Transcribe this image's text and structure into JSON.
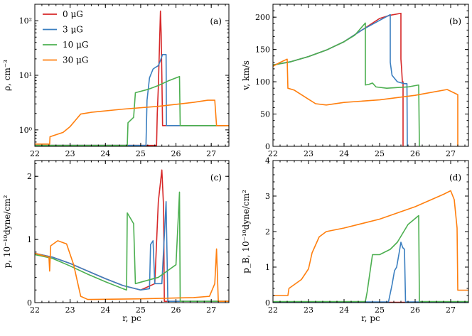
{
  "figure": {
    "legend": {
      "placement": "top-left of panel (a)",
      "entries": [
        {
          "label": "0 μG",
          "color": "#d62728"
        },
        {
          "label": "3 μG",
          "color": "#3b7fc0"
        },
        {
          "label": "10 μG",
          "color": "#4caf50"
        },
        {
          "label": "30 μG",
          "color": "#ff7f0e"
        }
      ]
    }
  },
  "chart_data": [
    {
      "id": "a",
      "type": "line",
      "panel_label": "(a)",
      "xlabel": "",
      "ylabel": "ρ, cm⁻³",
      "yscale": "log",
      "xlim": [
        22,
        27.5
      ],
      "ylim": [
        0.5,
        200
      ],
      "xticks": [
        22,
        23,
        24,
        25,
        26,
        27
      ],
      "xtick_labels": [
        "22",
        "23",
        "24",
        "25",
        "26",
        "27"
      ],
      "yticks": [
        1,
        10,
        100
      ],
      "ytick_labels": [
        "10⁰",
        "10¹",
        "10²"
      ],
      "series": [
        {
          "name": "0 μG",
          "color": "#d62728",
          "points": [
            [
              22,
              0.52
            ],
            [
              25.45,
              0.52
            ],
            [
              25.47,
              2.0
            ],
            [
              25.5,
              6.0
            ],
            [
              25.53,
              30
            ],
            [
              25.56,
              150
            ],
            [
              25.58,
              60
            ],
            [
              25.6,
              10
            ],
            [
              25.62,
              1.2
            ],
            [
              27.5,
              1.2
            ]
          ]
        },
        {
          "name": "3 μG",
          "color": "#3b7fc0",
          "points": [
            [
              22,
              0.52
            ],
            [
              25.15,
              0.52
            ],
            [
              25.18,
              3.5
            ],
            [
              25.25,
              9
            ],
            [
              25.35,
              13
            ],
            [
              25.42,
              14
            ],
            [
              25.5,
              15
            ],
            [
              25.55,
              18
            ],
            [
              25.62,
              24
            ],
            [
              25.72,
              24
            ],
            [
              25.73,
              1.2
            ],
            [
              27.5,
              1.2
            ]
          ]
        },
        {
          "name": "10 μG",
          "color": "#4caf50",
          "points": [
            [
              22,
              0.52
            ],
            [
              24.62,
              0.52
            ],
            [
              24.64,
              1.35
            ],
            [
              24.8,
              1.7
            ],
            [
              24.85,
              4.8
            ],
            [
              25.2,
              5.5
            ],
            [
              25.5,
              6.5
            ],
            [
              25.8,
              8
            ],
            [
              26.1,
              9.5
            ],
            [
              26.12,
              1.2
            ],
            [
              27.5,
              1.2
            ]
          ]
        },
        {
          "name": "30 μG",
          "color": "#ff7f0e",
          "points": [
            [
              22,
              0.55
            ],
            [
              22.42,
              0.55
            ],
            [
              22.43,
              0.75
            ],
            [
              22.8,
              0.9
            ],
            [
              23.0,
              1.15
            ],
            [
              23.15,
              1.5
            ],
            [
              23.3,
              1.95
            ],
            [
              23.6,
              2.1
            ],
            [
              24.5,
              2.4
            ],
            [
              25.5,
              2.7
            ],
            [
              26.5,
              3.2
            ],
            [
              26.9,
              3.5
            ],
            [
              27.1,
              3.5
            ],
            [
              27.15,
              1.2
            ],
            [
              27.5,
              1.2
            ]
          ]
        }
      ]
    },
    {
      "id": "b",
      "type": "line",
      "panel_label": "(b)",
      "xlabel": "",
      "ylabel": "v, km/s",
      "yscale": "linear",
      "xlim": [
        22,
        27.5
      ],
      "ylim": [
        0,
        220
      ],
      "xticks": [
        22,
        23,
        24,
        25,
        26,
        27
      ],
      "xtick_labels": [
        "22",
        "23",
        "24",
        "25",
        "26",
        "27"
      ],
      "yticks": [
        0,
        50,
        100,
        150,
        200
      ],
      "ytick_labels": [
        "0",
        "50",
        "100",
        "150",
        "200"
      ],
      "series": [
        {
          "name": "0 μG",
          "color": "#d62728",
          "points": [
            [
              22,
              126
            ],
            [
              22.5,
              131
            ],
            [
              23,
              139
            ],
            [
              23.5,
              149
            ],
            [
              24,
              162
            ],
            [
              24.5,
              180
            ],
            [
              25,
              198
            ],
            [
              25.3,
              203
            ],
            [
              25.6,
              206
            ],
            [
              25.6,
              135
            ],
            [
              25.62,
              120
            ],
            [
              25.64,
              100
            ],
            [
              25.66,
              100
            ],
            [
              25.66,
              0
            ]
          ]
        },
        {
          "name": "3 μG",
          "color": "#3b7fc0",
          "points": [
            [
              22,
              126
            ],
            [
              22.5,
              131
            ],
            [
              23,
              139
            ],
            [
              23.5,
              149
            ],
            [
              24,
              162
            ],
            [
              24.5,
              180
            ],
            [
              25,
              195
            ],
            [
              25.3,
              204
            ],
            [
              25.3,
              130
            ],
            [
              25.35,
              110
            ],
            [
              25.5,
              100
            ],
            [
              25.7,
              97
            ],
            [
              25.77,
              97
            ],
            [
              25.78,
              0
            ]
          ]
        },
        {
          "name": "10 μG",
          "color": "#4caf50",
          "points": [
            [
              22,
              126
            ],
            [
              22.5,
              131
            ],
            [
              23,
              139
            ],
            [
              23.5,
              149
            ],
            [
              24,
              162
            ],
            [
              24.3,
              172
            ],
            [
              24.6,
              191
            ],
            [
              24.6,
              95
            ],
            [
              24.7,
              96
            ],
            [
              24.8,
              98
            ],
            [
              24.9,
              92
            ],
            [
              25.2,
              90
            ],
            [
              25.8,
              92
            ],
            [
              26.1,
              95
            ],
            [
              26.12,
              0
            ]
          ]
        },
        {
          "name": "30 μG",
          "color": "#ff7f0e",
          "points": [
            [
              22,
              124
            ],
            [
              22.2,
              130
            ],
            [
              22.4,
              135
            ],
            [
              22.42,
              90
            ],
            [
              22.6,
              87
            ],
            [
              22.8,
              80
            ],
            [
              23,
              73
            ],
            [
              23.2,
              66
            ],
            [
              23.5,
              64
            ],
            [
              24,
              68
            ],
            [
              25,
              72
            ],
            [
              26,
              79
            ],
            [
              26.9,
              88
            ],
            [
              27.05,
              84
            ],
            [
              27.2,
              80
            ],
            [
              27.2,
              0
            ]
          ]
        }
      ]
    },
    {
      "id": "c",
      "type": "line",
      "panel_label": "(c)",
      "xlabel": "r, pc",
      "ylabel": "p, 10⁻¹⁰dyne/cm²",
      "yscale": "linear",
      "xlim": [
        22,
        27.5
      ],
      "ylim": [
        0,
        2.25
      ],
      "xticks": [
        22,
        23,
        24,
        25,
        26,
        27
      ],
      "xtick_labels": [
        "22",
        "23",
        "24",
        "25",
        "26",
        "27"
      ],
      "yticks": [
        0,
        1,
        2
      ],
      "ytick_labels": [
        "0",
        "1",
        "2"
      ],
      "series": [
        {
          "name": "0 μG",
          "color": "#d62728",
          "points": [
            [
              22,
              0.78
            ],
            [
              22.5,
              0.72
            ],
            [
              23,
              0.62
            ],
            [
              23.5,
              0.5
            ],
            [
              24,
              0.38
            ],
            [
              24.5,
              0.27
            ],
            [
              25,
              0.2
            ],
            [
              25.4,
              0.3
            ],
            [
              25.5,
              1.6
            ],
            [
              25.6,
              2.1
            ],
            [
              25.65,
              1.5
            ],
            [
              25.67,
              0.02
            ],
            [
              27.5,
              0.02
            ]
          ]
        },
        {
          "name": "3 μG",
          "color": "#3b7fc0",
          "points": [
            [
              22,
              0.78
            ],
            [
              22.5,
              0.72
            ],
            [
              23,
              0.62
            ],
            [
              23.5,
              0.5
            ],
            [
              24,
              0.38
            ],
            [
              24.5,
              0.27
            ],
            [
              25,
              0.2
            ],
            [
              25.25,
              0.22
            ],
            [
              25.28,
              0.92
            ],
            [
              25.35,
              0.98
            ],
            [
              25.4,
              0.3
            ],
            [
              25.6,
              0.3
            ],
            [
              25.72,
              1.6
            ],
            [
              25.77,
              0.02
            ],
            [
              27.5,
              0.02
            ]
          ]
        },
        {
          "name": "10 μG",
          "color": "#4caf50",
          "points": [
            [
              22,
              0.76
            ],
            [
              22.5,
              0.7
            ],
            [
              23,
              0.58
            ],
            [
              23.5,
              0.45
            ],
            [
              24,
              0.33
            ],
            [
              24.5,
              0.22
            ],
            [
              24.6,
              0.2
            ],
            [
              24.62,
              1.42
            ],
            [
              24.8,
              1.25
            ],
            [
              24.85,
              0.3
            ],
            [
              25.5,
              0.4
            ],
            [
              26,
              0.6
            ],
            [
              26.1,
              1.75
            ],
            [
              26.12,
              0.02
            ],
            [
              27.5,
              0.02
            ]
          ]
        },
        {
          "name": "30 μG",
          "color": "#ff7f0e",
          "points": [
            [
              22,
              0.78
            ],
            [
              22.4,
              0.72
            ],
            [
              22.42,
              0.5
            ],
            [
              22.45,
              0.9
            ],
            [
              22.65,
              0.98
            ],
            [
              22.9,
              0.93
            ],
            [
              23.1,
              0.6
            ],
            [
              23.3,
              0.1
            ],
            [
              23.5,
              0.05
            ],
            [
              25,
              0.06
            ],
            [
              26.5,
              0.08
            ],
            [
              26.95,
              0.1
            ],
            [
              27.1,
              0.3
            ],
            [
              27.15,
              0.85
            ],
            [
              27.2,
              0.02
            ],
            [
              27.5,
              0.02
            ]
          ]
        }
      ]
    },
    {
      "id": "d",
      "type": "line",
      "panel_label": "(d)",
      "xlabel": "r, pc",
      "ylabel": "p_B, 10⁻¹⁰dyne/cm²",
      "yscale": "linear",
      "xlim": [
        22,
        27.5
      ],
      "ylim": [
        0,
        4
      ],
      "xticks": [
        22,
        23,
        24,
        25,
        26,
        27
      ],
      "xtick_labels": [
        "22",
        "23",
        "24",
        "25",
        "26",
        "27"
      ],
      "yticks": [
        0,
        1,
        2,
        3,
        4
      ],
      "ytick_labels": [
        "0",
        "1",
        "2",
        "3",
        "4"
      ],
      "series": [
        {
          "name": "0 μG",
          "color": "#d62728",
          "points": [
            [
              22,
              0.01
            ],
            [
              27.5,
              0.01
            ]
          ]
        },
        {
          "name": "3 μG",
          "color": "#3b7fc0",
          "points": [
            [
              22,
              0.02
            ],
            [
              25.25,
              0.02
            ],
            [
              25.35,
              0.5
            ],
            [
              25.42,
              0.9
            ],
            [
              25.48,
              1.0
            ],
            [
              25.55,
              1.4
            ],
            [
              25.6,
              1.7
            ],
            [
              25.65,
              1.55
            ],
            [
              25.7,
              1.5
            ],
            [
              25.73,
              0.02
            ],
            [
              27.5,
              0.02
            ]
          ]
        },
        {
          "name": "10 μG",
          "color": "#4caf50",
          "points": [
            [
              22,
              0.03
            ],
            [
              24.6,
              0.03
            ],
            [
              24.65,
              0.3
            ],
            [
              24.8,
              1.35
            ],
            [
              25.0,
              1.35
            ],
            [
              25.3,
              1.5
            ],
            [
              25.5,
              1.7
            ],
            [
              25.8,
              2.2
            ],
            [
              26.1,
              2.45
            ],
            [
              26.12,
              0.03
            ],
            [
              27.5,
              0.03
            ]
          ]
        },
        {
          "name": "30 μG",
          "color": "#ff7f0e",
          "points": [
            [
              22,
              0.2
            ],
            [
              22.42,
              0.2
            ],
            [
              22.45,
              0.4
            ],
            [
              22.8,
              0.65
            ],
            [
              23.0,
              0.95
            ],
            [
              23.1,
              1.4
            ],
            [
              23.3,
              1.85
            ],
            [
              23.5,
              2.0
            ],
            [
              24,
              2.1
            ],
            [
              25,
              2.35
            ],
            [
              26,
              2.7
            ],
            [
              26.8,
              3.05
            ],
            [
              27.0,
              3.15
            ],
            [
              27.1,
              2.9
            ],
            [
              27.18,
              2.1
            ],
            [
              27.2,
              0.35
            ],
            [
              27.5,
              0.35
            ]
          ]
        }
      ]
    }
  ]
}
